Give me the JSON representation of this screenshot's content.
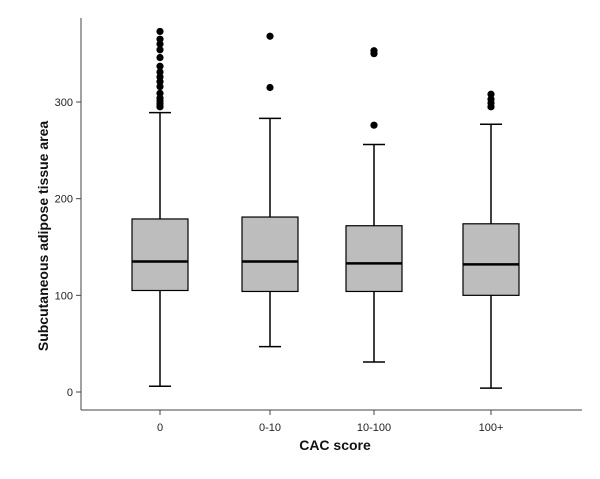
{
  "chart_data": {
    "type": "boxplot",
    "title": "",
    "xlabel": "CAC score",
    "ylabel": "Subcutaneous adipose tissue area",
    "categories": [
      "0",
      "0-10",
      "10-100",
      "100+"
    ],
    "ylim": [
      -15,
      385
    ],
    "yticks": [
      0,
      100,
      200,
      300
    ],
    "grid": false,
    "legend": "none",
    "box_fill": "#bdbdbd",
    "line_color": "#000000",
    "boxes": [
      {
        "category": "0",
        "whisker_low": 6,
        "q1": 105,
        "median": 135,
        "q3": 179,
        "whisker_high": 289,
        "outliers": [
          295,
          298,
          301,
          304,
          309,
          316,
          321,
          326,
          331,
          337,
          346,
          354,
          360,
          365,
          373
        ]
      },
      {
        "category": "0-10",
        "whisker_low": 47,
        "q1": 104,
        "median": 135,
        "q3": 181,
        "whisker_high": 283,
        "outliers": [
          315,
          368
        ]
      },
      {
        "category": "10-100",
        "whisker_low": 31,
        "q1": 104,
        "median": 133,
        "q3": 172,
        "whisker_high": 256,
        "outliers": [
          276,
          350,
          353
        ]
      },
      {
        "category": "100+",
        "whisker_low": 4,
        "q1": 100,
        "median": 132,
        "q3": 174,
        "whisker_high": 277,
        "outliers": [
          295,
          299,
          303,
          308
        ]
      }
    ]
  }
}
